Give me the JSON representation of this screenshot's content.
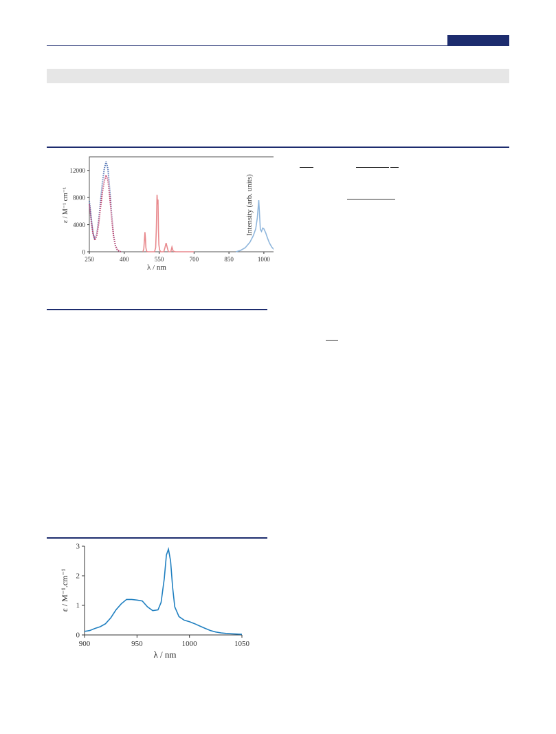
{
  "chart_data": [
    {
      "type": "line",
      "title": "",
      "xlabel": "λ / nm",
      "ylabel": "ε / M⁻¹ cm⁻¹",
      "y2label": "Intensity (arb. units)",
      "xlim": [
        250,
        1080
      ],
      "ylim": [
        0,
        14000
      ],
      "x_ticks": [
        "250",
        "400",
        "550",
        "700",
        "850",
        "1000"
      ],
      "y_ticks": [
        "0",
        "4000",
        "8000",
        "12000"
      ],
      "series": [
        {
          "color": "#5b7bb8",
          "style": "dotted",
          "x": [
            250,
            258,
            266,
            274,
            282,
            290,
            298,
            306,
            314,
            322,
            330,
            338,
            346,
            354,
            362,
            370,
            378,
            385
          ],
          "y": [
            7500,
            5000,
            2800,
            1800,
            2600,
            4600,
            7400,
            10200,
            12200,
            13300,
            12200,
            9000,
            5400,
            2400,
            900,
            300,
            100,
            0
          ]
        },
        {
          "color": "#c0446e",
          "style": "dotted",
          "x": [
            250,
            258,
            266,
            274,
            282,
            290,
            298,
            306,
            314,
            322,
            330,
            338,
            346,
            354,
            362,
            370,
            378,
            385
          ],
          "y": [
            7000,
            4600,
            2600,
            1700,
            2400,
            4100,
            6500,
            8800,
            10400,
            11300,
            10500,
            8000,
            5000,
            2300,
            900,
            300,
            100,
            0
          ]
        },
        {
          "color": "#e8898d",
          "style": "solid",
          "x": [
            480,
            484,
            487,
            489,
            491,
            493,
            496,
            500,
            530,
            535,
            538,
            541,
            543,
            545,
            547,
            549,
            552,
            556,
            570,
            575,
            580,
            585,
            590,
            600,
            605,
            610,
            620,
            700
          ],
          "y": [
            0,
            400,
            1800,
            2900,
            2000,
            600,
            100,
            0,
            0,
            600,
            3500,
            8400,
            7000,
            7700,
            3000,
            1000,
            300,
            0,
            0,
            600,
            1300,
            600,
            0,
            0,
            700,
            100,
            0,
            0
          ]
        },
        {
          "color": "#8fb6dc",
          "style": "solid",
          "x": [
            880,
            900,
            920,
            940,
            955,
            965,
            972,
            978,
            982,
            985,
            990,
            995,
            1000,
            1008,
            1016,
            1024,
            1034,
            1044,
            1056,
            1070
          ],
          "y": [
            0,
            200,
            600,
            1400,
            2400,
            3400,
            5000,
            7600,
            5200,
            3300,
            3000,
            3500,
            3400,
            2800,
            2000,
            1300,
            700,
            300,
            80,
            0
          ]
        }
      ]
    },
    {
      "type": "line",
      "title": "",
      "xlabel": "λ / nm",
      "ylabel": "ε / M⁻¹.cm⁻¹",
      "xlim": [
        900,
        1050
      ],
      "ylim": [
        0,
        3
      ],
      "x_ticks": [
        "900",
        "950",
        "1000",
        "1050"
      ],
      "y_ticks": [
        "0",
        "1",
        "2",
        "3"
      ],
      "series": [
        {
          "color": "#1f7fc0",
          "x": [
            900,
            905,
            910,
            915,
            920,
            925,
            930,
            935,
            940,
            945,
            950,
            955,
            960,
            965,
            970,
            973,
            976,
            978,
            980,
            982,
            984,
            986,
            990,
            995,
            1000,
            1005,
            1010,
            1015,
            1020,
            1025,
            1030,
            1035,
            1040,
            1045,
            1050
          ],
          "y": [
            0.12,
            0.15,
            0.22,
            0.28,
            0.38,
            0.58,
            0.85,
            1.05,
            1.2,
            1.2,
            1.18,
            1.15,
            0.95,
            0.82,
            0.85,
            1.1,
            1.9,
            2.7,
            2.9,
            2.5,
            1.6,
            0.95,
            0.62,
            0.5,
            0.45,
            0.38,
            0.3,
            0.22,
            0.15,
            0.1,
            0.07,
            0.05,
            0.04,
            0.03,
            0.02
          ]
        }
      ]
    }
  ]
}
